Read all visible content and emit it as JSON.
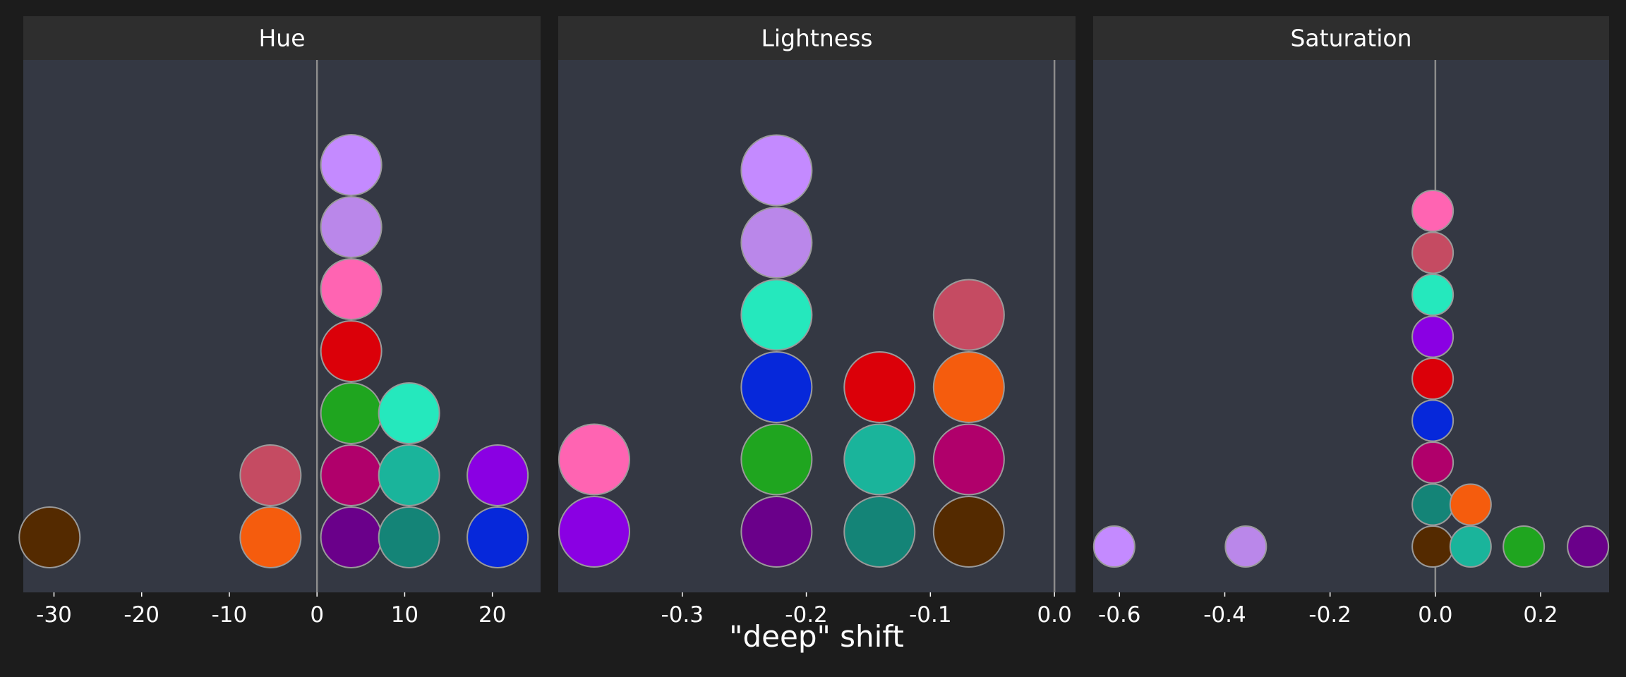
{
  "chart_data": {
    "type": "scatter",
    "subtype": "beeswarm-facets",
    "xlabel": "\"deep\" shift",
    "colors": {
      "background": "#1c1c1c",
      "panel": "#343843",
      "strip": "#2e2e2e",
      "zero_line": "#8c8c8c",
      "marker_edge": "#9a9a9a"
    },
    "panels": [
      {
        "strip_label": "Hue",
        "xlim": [
          -33.5,
          25.5
        ],
        "ticks": [
          -30,
          -20,
          -10,
          0,
          10,
          20
        ],
        "tick_labels": [
          "-30",
          "-20",
          "-10",
          "0",
          "10",
          "20"
        ],
        "points": [
          {
            "x": -30.5,
            "level": 0,
            "color": "#542a00"
          },
          {
            "x": -5.3,
            "level": 0,
            "color": "#f55c0d"
          },
          {
            "x": -5.3,
            "level": 1,
            "color": "#c54b62"
          },
          {
            "x": 3.9,
            "level": 0,
            "color": "#6a008a"
          },
          {
            "x": 3.9,
            "level": 1,
            "color": "#b0006b"
          },
          {
            "x": 3.9,
            "level": 2,
            "color": "#1fa51f"
          },
          {
            "x": 3.9,
            "level": 3,
            "color": "#db0009"
          },
          {
            "x": 3.9,
            "level": 4,
            "color": "#ff64b2"
          },
          {
            "x": 3.9,
            "level": 5,
            "color": "#ba87ea"
          },
          {
            "x": 3.9,
            "level": 6,
            "color": "#c48aff"
          },
          {
            "x": 10.5,
            "level": 0,
            "color": "#148477"
          },
          {
            "x": 10.5,
            "level": 1,
            "color": "#1ab49b"
          },
          {
            "x": 10.5,
            "level": 2,
            "color": "#25e8bd"
          },
          {
            "x": 20.6,
            "level": 0,
            "color": "#0628da"
          },
          {
            "x": 20.6,
            "level": 1,
            "color": "#8a00e3"
          }
        ]
      },
      {
        "strip_label": "Lightness",
        "xlim": [
          -0.4,
          0.017
        ],
        "ticks": [
          -0.3,
          -0.2,
          -0.1,
          0.0
        ],
        "tick_labels": [
          "-0.3",
          "-0.2",
          "-0.1",
          "0.0"
        ],
        "points": [
          {
            "x": -0.371,
            "level": 0,
            "color": "#8a00e3"
          },
          {
            "x": -0.371,
            "level": 1,
            "color": "#ff64b2"
          },
          {
            "x": -0.224,
            "level": 0,
            "color": "#6a008a"
          },
          {
            "x": -0.224,
            "level": 1,
            "color": "#1fa51f"
          },
          {
            "x": -0.224,
            "level": 2,
            "color": "#0628da"
          },
          {
            "x": -0.224,
            "level": 3,
            "color": "#25e8bd"
          },
          {
            "x": -0.224,
            "level": 4,
            "color": "#ba87ea"
          },
          {
            "x": -0.224,
            "level": 5,
            "color": "#c48aff"
          },
          {
            "x": -0.141,
            "level": 0,
            "color": "#148477"
          },
          {
            "x": -0.141,
            "level": 1,
            "color": "#1ab49b"
          },
          {
            "x": -0.141,
            "level": 2,
            "color": "#db0009"
          },
          {
            "x": -0.069,
            "level": 0,
            "color": "#542a00"
          },
          {
            "x": -0.069,
            "level": 1,
            "color": "#b0006b"
          },
          {
            "x": -0.069,
            "level": 2,
            "color": "#f55c0d"
          },
          {
            "x": -0.069,
            "level": 3,
            "color": "#c54b62"
          }
        ]
      },
      {
        "strip_label": "Saturation",
        "xlim": [
          -0.65,
          0.33
        ],
        "ticks": [
          -0.6,
          -0.4,
          -0.2,
          0.0,
          0.2
        ],
        "tick_labels": [
          "-0.6",
          "-0.4",
          "-0.2",
          "0.0",
          "0.2"
        ],
        "points": [
          {
            "x": -0.61,
            "level": 0,
            "color": "#c48aff"
          },
          {
            "x": -0.36,
            "level": 0,
            "color": "#ba87ea"
          },
          {
            "x": -0.005,
            "level": 0,
            "color": "#542a00"
          },
          {
            "x": -0.005,
            "level": 1,
            "color": "#148477"
          },
          {
            "x": -0.005,
            "level": 2,
            "color": "#b0006b"
          },
          {
            "x": -0.005,
            "level": 3,
            "color": "#0628da"
          },
          {
            "x": -0.005,
            "level": 4,
            "color": "#db0009"
          },
          {
            "x": -0.005,
            "level": 5,
            "color": "#8a00e3"
          },
          {
            "x": -0.005,
            "level": 6,
            "color": "#25e8bd"
          },
          {
            "x": -0.005,
            "level": 7,
            "color": "#c54b62"
          },
          {
            "x": -0.005,
            "level": 8,
            "color": "#ff64b2"
          },
          {
            "x": 0.067,
            "level": 0,
            "color": "#1ab49b"
          },
          {
            "x": 0.067,
            "level": 1,
            "color": "#f55c0d"
          },
          {
            "x": 0.168,
            "level": 0,
            "color": "#1fa51f"
          },
          {
            "x": 0.29,
            "level": 0,
            "color": "#6a008a"
          }
        ]
      }
    ]
  }
}
